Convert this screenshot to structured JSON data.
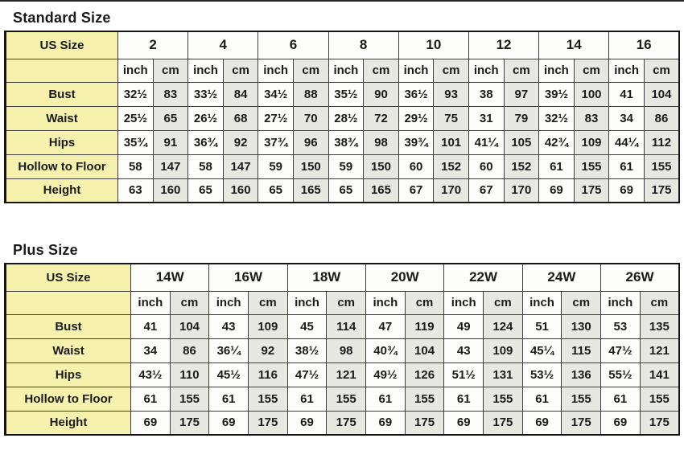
{
  "page": {
    "top_rule_color": "#262626"
  },
  "colors": {
    "label_column_bg": "#f6f1ad",
    "inch_cell_bg": "#fdfdfb",
    "cm_cell_bg": "#e8e8e3",
    "grid_border": "#3e3e3e",
    "outer_border": "#151515",
    "text": "#1b1b1b"
  },
  "tables": [
    {
      "title": "Standard Size",
      "corner_label": "US Size",
      "unit_labels": [
        "inch",
        "cm"
      ],
      "sizes": [
        "2",
        "4",
        "6",
        "8",
        "10",
        "12",
        "14",
        "16"
      ],
      "rows": [
        {
          "label": "Bust",
          "values": [
            [
              "32½",
              "83"
            ],
            [
              "33½",
              "84"
            ],
            [
              "34½",
              "88"
            ],
            [
              "35½",
              "90"
            ],
            [
              "36½",
              "93"
            ],
            [
              "38",
              "97"
            ],
            [
              "39½",
              "100"
            ],
            [
              "41",
              "104"
            ]
          ]
        },
        {
          "label": "Waist",
          "values": [
            [
              "25½",
              "65"
            ],
            [
              "26½",
              "68"
            ],
            [
              "27½",
              "70"
            ],
            [
              "28½",
              "72"
            ],
            [
              "29½",
              "75"
            ],
            [
              "31",
              "79"
            ],
            [
              "32½",
              "83"
            ],
            [
              "34",
              "86"
            ]
          ]
        },
        {
          "label": "Hips",
          "values": [
            [
              "35¾",
              "91"
            ],
            [
              "36¾",
              "92"
            ],
            [
              "37¾",
              "96"
            ],
            [
              "38¾",
              "98"
            ],
            [
              "39¾",
              "101"
            ],
            [
              "41¼",
              "105"
            ],
            [
              "42¾",
              "109"
            ],
            [
              "44¼",
              "112"
            ]
          ]
        },
        {
          "label": "Hollow to Floor",
          "values": [
            [
              "58",
              "147"
            ],
            [
              "58",
              "147"
            ],
            [
              "59",
              "150"
            ],
            [
              "59",
              "150"
            ],
            [
              "60",
              "152"
            ],
            [
              "60",
              "152"
            ],
            [
              "61",
              "155"
            ],
            [
              "61",
              "155"
            ]
          ]
        },
        {
          "label": "Height",
          "values": [
            [
              "63",
              "160"
            ],
            [
              "65",
              "160"
            ],
            [
              "65",
              "165"
            ],
            [
              "65",
              "165"
            ],
            [
              "67",
              "170"
            ],
            [
              "67",
              "170"
            ],
            [
              "69",
              "175"
            ],
            [
              "69",
              "175"
            ]
          ]
        }
      ]
    },
    {
      "title": "Plus Size",
      "corner_label": "US Size",
      "unit_labels": [
        "inch",
        "cm"
      ],
      "sizes": [
        "14W",
        "16W",
        "18W",
        "20W",
        "22W",
        "24W",
        "26W"
      ],
      "rows": [
        {
          "label": "Bust",
          "values": [
            [
              "41",
              "104"
            ],
            [
              "43",
              "109"
            ],
            [
              "45",
              "114"
            ],
            [
              "47",
              "119"
            ],
            [
              "49",
              "124"
            ],
            [
              "51",
              "130"
            ],
            [
              "53",
              "135"
            ]
          ]
        },
        {
          "label": "Waist",
          "values": [
            [
              "34",
              "86"
            ],
            [
              "36¼",
              "92"
            ],
            [
              "38½",
              "98"
            ],
            [
              "40¾",
              "104"
            ],
            [
              "43",
              "109"
            ],
            [
              "45¼",
              "115"
            ],
            [
              "47½",
              "121"
            ]
          ]
        },
        {
          "label": "Hips",
          "values": [
            [
              "43½",
              "110"
            ],
            [
              "45½",
              "116"
            ],
            [
              "47½",
              "121"
            ],
            [
              "49½",
              "126"
            ],
            [
              "51½",
              "131"
            ],
            [
              "53½",
              "136"
            ],
            [
              "55½",
              "141"
            ]
          ]
        },
        {
          "label": "Hollow to Floor",
          "values": [
            [
              "61",
              "155"
            ],
            [
              "61",
              "155"
            ],
            [
              "61",
              "155"
            ],
            [
              "61",
              "155"
            ],
            [
              "61",
              "155"
            ],
            [
              "61",
              "155"
            ],
            [
              "61",
              "155"
            ]
          ]
        },
        {
          "label": "Height",
          "values": [
            [
              "69",
              "175"
            ],
            [
              "69",
              "175"
            ],
            [
              "69",
              "175"
            ],
            [
              "69",
              "175"
            ],
            [
              "69",
              "175"
            ],
            [
              "69",
              "175"
            ],
            [
              "69",
              "175"
            ]
          ]
        }
      ]
    }
  ]
}
